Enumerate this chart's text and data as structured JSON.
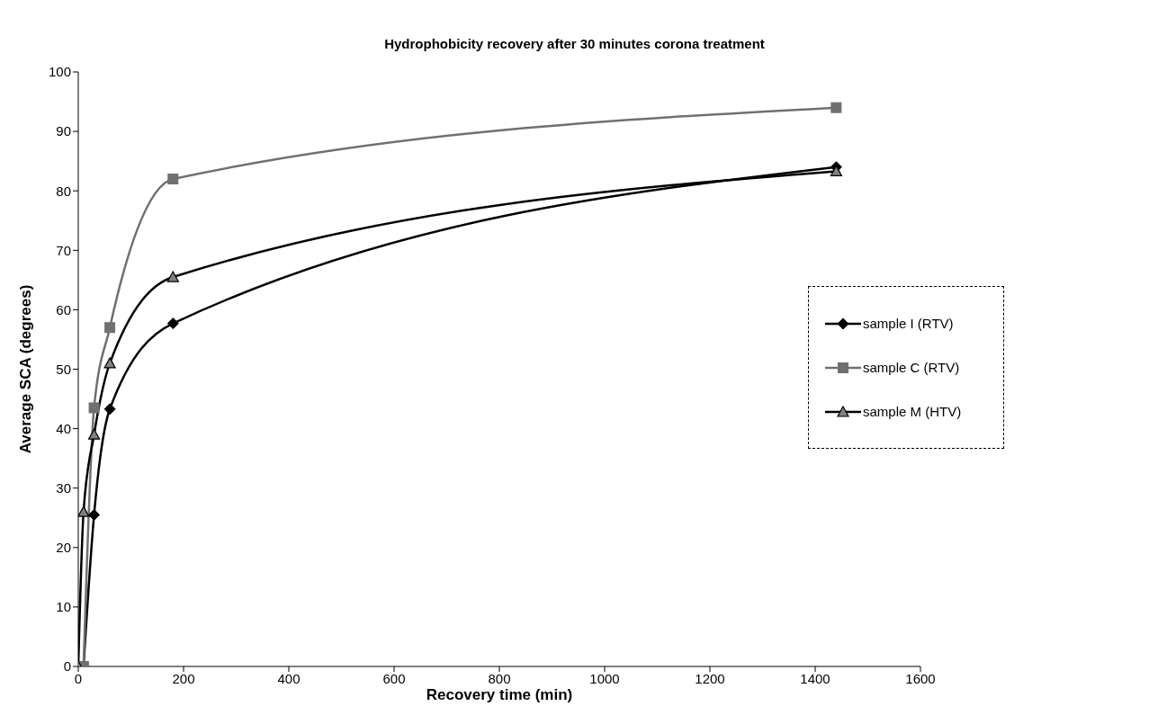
{
  "chart_data": {
    "type": "line",
    "title": "Hydrophobicity recovery after 30 minutes corona treatment",
    "xlabel": "Recovery time  (min)",
    "ylabel": "Average SCA (degrees)",
    "xlim": [
      0,
      1600
    ],
    "xticks": [
      0,
      200,
      400,
      600,
      800,
      1000,
      1200,
      1400,
      1600
    ],
    "ylim": [
      0,
      100
    ],
    "yticks": [
      0,
      10,
      20,
      30,
      40,
      50,
      60,
      70,
      80,
      90,
      100
    ],
    "legend": "right",
    "series": [
      {
        "name": "sample I (RTV)",
        "color": "#000000",
        "marker": "diamond",
        "x": [
          10,
          30,
          60,
          180,
          1440
        ],
        "values": [
          0,
          25.5,
          43.3,
          57.7,
          84
        ]
      },
      {
        "name": "sample C (RTV)",
        "color": "#707070",
        "marker": "square",
        "x": [
          10,
          30,
          60,
          180,
          1440
        ],
        "values": [
          0,
          43.5,
          57,
          82,
          94
        ]
      },
      {
        "name": "sample M (HTV)",
        "color": "#000000",
        "marker": "triangle",
        "x": [
          0,
          10,
          30,
          60,
          180,
          1440
        ],
        "values": [
          0,
          26,
          39,
          51,
          65.5,
          83.3
        ]
      }
    ]
  }
}
